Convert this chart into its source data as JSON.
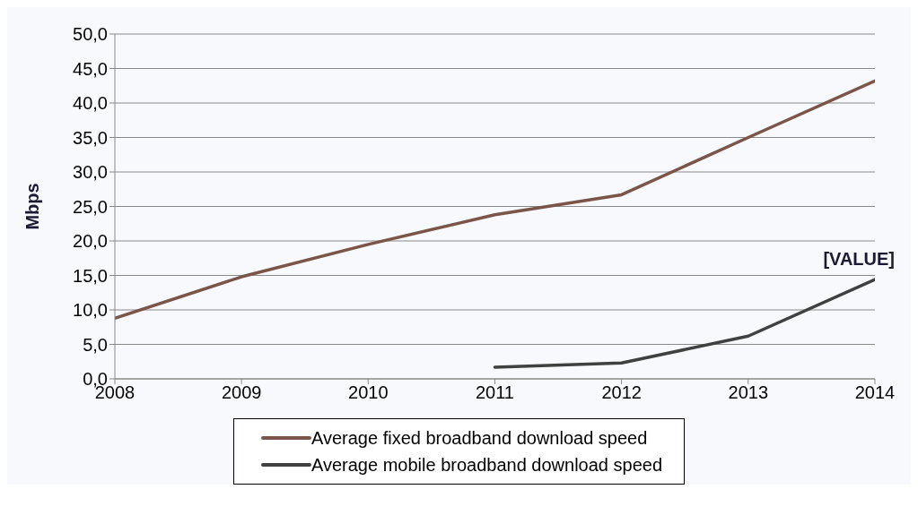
{
  "chart_data": {
    "type": "line",
    "ylabel": "Mbps",
    "x": [
      2008,
      2009,
      2010,
      2011,
      2012,
      2013,
      2014
    ],
    "series": [
      {
        "name": "Average fixed broadband download speed",
        "color": "#7b5549",
        "values": [
          8.8,
          14.8,
          19.5,
          23.8,
          26.7,
          35.0,
          43.2
        ]
      },
      {
        "name": "Average mobile broadband download speed",
        "color": "#404040",
        "values": [
          null,
          null,
          null,
          1.7,
          2.3,
          6.2,
          14.4
        ]
      }
    ],
    "xlim": [
      2008,
      2014
    ],
    "xticks": [
      2008,
      2009,
      2010,
      2011,
      2012,
      2013,
      2014
    ],
    "ylim": [
      0,
      50
    ],
    "yticks": [
      {
        "value": 0,
        "label": "0,0"
      },
      {
        "value": 5,
        "label": "5,0"
      },
      {
        "value": 10,
        "label": "10,0"
      },
      {
        "value": 15,
        "label": "15,0"
      },
      {
        "value": 20,
        "label": "20,0"
      },
      {
        "value": 25,
        "label": "25,0"
      },
      {
        "value": 30,
        "label": "30,0"
      },
      {
        "value": 35,
        "label": "35,0"
      },
      {
        "value": 40,
        "label": "40,0"
      },
      {
        "value": 45,
        "label": "45,0"
      },
      {
        "value": 50,
        "label": "50,0"
      }
    ],
    "grid": "y",
    "legend": "bottom",
    "marker": "none",
    "line_style": "solid",
    "annotations": [
      {
        "text": "[VALUE]",
        "x": 2014,
        "y": 14.4
      }
    ]
  }
}
